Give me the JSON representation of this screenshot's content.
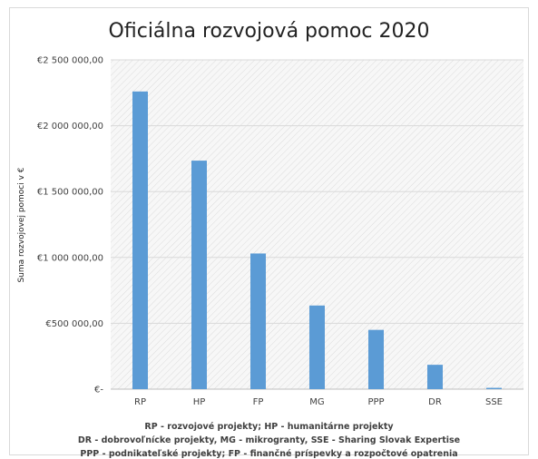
{
  "chart_data": {
    "type": "bar",
    "title": "Oficiálna rozvojová pomoc 2020",
    "xlabel": "",
    "ylabel": "Suma rozvojovej pomoci v €",
    "categories": [
      "RP",
      "HP",
      "FP",
      "MG",
      "PPP",
      "DR",
      "SSE"
    ],
    "values": [
      2260000,
      1735000,
      1030000,
      635000,
      450000,
      185000,
      10000
    ],
    "ylim": [
      0,
      2500000
    ],
    "yticks": [
      0,
      500000,
      1000000,
      1500000,
      2000000,
      2500000
    ],
    "ytick_labels": [
      "€-",
      "€500 000,00",
      "€1 000 000,00",
      "€1 500 000,00",
      "€2 000 000,00",
      "€2 500 000,00"
    ],
    "bar_color": "#5b9bd5",
    "grid": "horizontal",
    "legend": "none"
  },
  "footnotes": [
    "RP - rozvojové projekty;   HP - humanitárne projekty",
    "DR - dobrovoľnícke projekty, MG - mikrogranty, SSE - Sharing Slovak Expertise",
    "PPP - podnikateľské projekty; FP - finančné príspevky a rozpočtové opatrenia"
  ]
}
